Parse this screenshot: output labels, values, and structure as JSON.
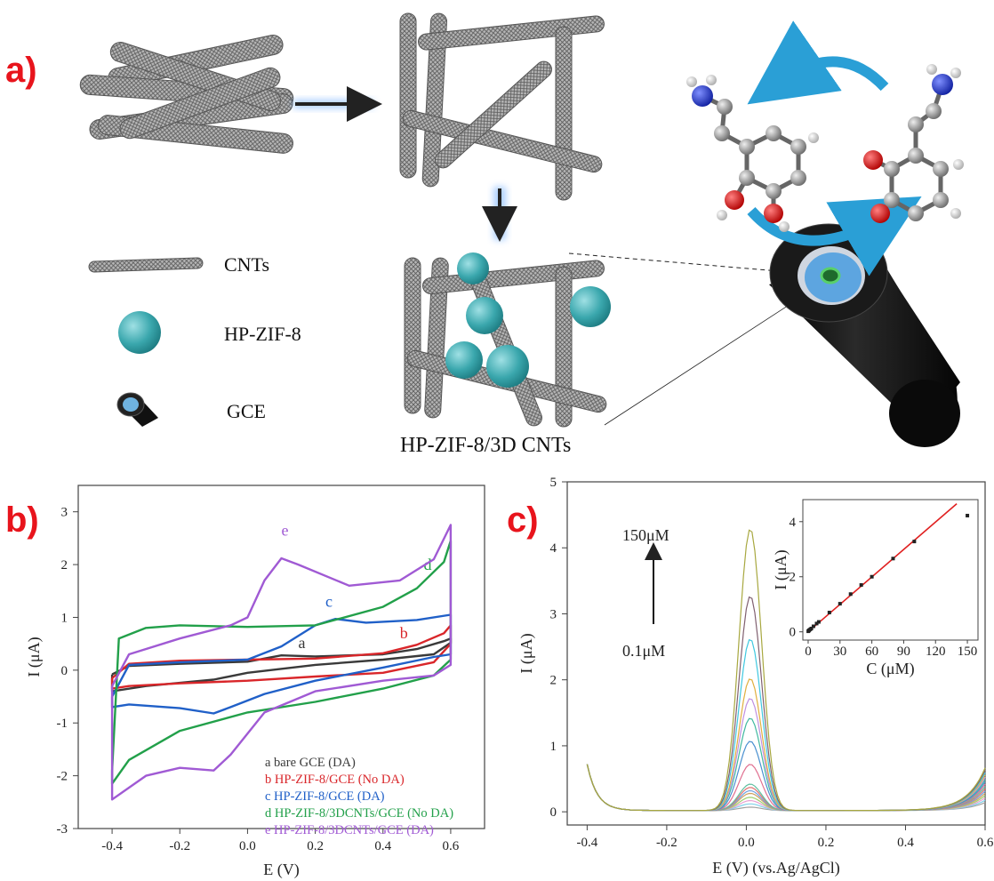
{
  "panel_labels": {
    "a": "a)",
    "b": "b)",
    "c": "c)"
  },
  "schematic": {
    "legend": [
      {
        "label": "CNTs",
        "icon": "cnt-tube-icon"
      },
      {
        "label": "HP-ZIF-8",
        "icon": "zif-sphere-icon"
      },
      {
        "label": "GCE",
        "icon": "electrode-icon"
      }
    ],
    "composite_caption": "HP-ZIF-8/3D CNTs",
    "colors": {
      "cnt": "#8a8a8a",
      "zif": "#3aa7ad",
      "arrow_cycle": "#2a9fd6",
      "electrode": "#111111",
      "electrode_face": "#6fb3e0"
    }
  },
  "chart_data": [
    {
      "type": "line",
      "id": "cv",
      "xlabel": "E (V)",
      "ylabel": "I (μA)",
      "xlim": [
        -0.5,
        0.7
      ],
      "ylim": [
        -3,
        3.5
      ],
      "xticks": [
        -0.4,
        -0.2,
        0.0,
        0.2,
        0.4,
        0.6
      ],
      "xtick_labels": [
        "-0.4",
        "-0.2",
        "0.0",
        "0.2",
        "0.4",
        "0.6"
      ],
      "yticks": [
        -3,
        -2,
        -1,
        0,
        1,
        2,
        3
      ],
      "ytick_labels": [
        "-3",
        "-2",
        "-1",
        "0",
        "1",
        "2",
        "3"
      ],
      "legend_placement": "bottom-right",
      "series": [
        {
          "name": "a bare GCE (DA)",
          "letter": "a",
          "color": "#3a3a3a",
          "label_at": [
            0.15,
            0.42
          ],
          "upper": [
            [
              -0.4,
              -0.08
            ],
            [
              -0.35,
              0.08
            ],
            [
              -0.2,
              0.12
            ],
            [
              0.0,
              0.16
            ],
            [
              0.1,
              0.28
            ],
            [
              0.2,
              0.26
            ],
            [
              0.4,
              0.3
            ],
            [
              0.5,
              0.4
            ],
            [
              0.58,
              0.55
            ],
            [
              0.6,
              0.6
            ]
          ],
          "lower": [
            [
              0.6,
              0.52
            ],
            [
              0.55,
              0.3
            ],
            [
              0.4,
              0.2
            ],
            [
              0.2,
              0.1
            ],
            [
              0.0,
              -0.05
            ],
            [
              -0.1,
              -0.18
            ],
            [
              -0.3,
              -0.3
            ],
            [
              -0.4,
              -0.4
            ]
          ]
        },
        {
          "name": "b HP-ZIF-8/GCE (No DA)",
          "letter": "b",
          "color": "#d9262a",
          "label_at": [
            0.45,
            0.6
          ],
          "upper": [
            [
              -0.4,
              -0.15
            ],
            [
              -0.35,
              0.12
            ],
            [
              -0.2,
              0.18
            ],
            [
              0.0,
              0.2
            ],
            [
              0.2,
              0.22
            ],
            [
              0.4,
              0.32
            ],
            [
              0.5,
              0.48
            ],
            [
              0.58,
              0.7
            ],
            [
              0.6,
              0.85
            ]
          ],
          "lower": [
            [
              0.6,
              0.5
            ],
            [
              0.55,
              0.15
            ],
            [
              0.4,
              -0.05
            ],
            [
              0.2,
              -0.12
            ],
            [
              0.0,
              -0.2
            ],
            [
              -0.2,
              -0.25
            ],
            [
              -0.35,
              -0.3
            ],
            [
              -0.4,
              -0.35
            ]
          ]
        },
        {
          "name": "c HP-ZIF-8/GCE (DA)",
          "letter": "c",
          "color": "#2060c8",
          "label_at": [
            0.23,
            1.2
          ],
          "upper": [
            [
              -0.4,
              -0.5
            ],
            [
              -0.35,
              0.1
            ],
            [
              -0.2,
              0.15
            ],
            [
              0.0,
              0.2
            ],
            [
              0.1,
              0.45
            ],
            [
              0.2,
              0.85
            ],
            [
              0.26,
              0.97
            ],
            [
              0.35,
              0.9
            ],
            [
              0.5,
              0.95
            ],
            [
              0.6,
              1.05
            ]
          ],
          "lower": [
            [
              0.6,
              0.3
            ],
            [
              0.55,
              0.25
            ],
            [
              0.4,
              0.05
            ],
            [
              0.2,
              -0.2
            ],
            [
              0.05,
              -0.45
            ],
            [
              -0.05,
              -0.7
            ],
            [
              -0.1,
              -0.82
            ],
            [
              -0.2,
              -0.72
            ],
            [
              -0.35,
              -0.65
            ],
            [
              -0.4,
              -0.7
            ]
          ]
        },
        {
          "name": "d HP-ZIF-8/3DCNTs/GCE (No DA)",
          "letter": "d",
          "color": "#22a04a",
          "label_at": [
            0.52,
            1.9
          ],
          "upper": [
            [
              -0.4,
              -1.9
            ],
            [
              -0.38,
              0.6
            ],
            [
              -0.3,
              0.8
            ],
            [
              -0.2,
              0.85
            ],
            [
              0.0,
              0.82
            ],
            [
              0.2,
              0.85
            ],
            [
              0.4,
              1.2
            ],
            [
              0.5,
              1.55
            ],
            [
              0.58,
              2.05
            ],
            [
              0.6,
              2.45
            ]
          ],
          "lower": [
            [
              0.6,
              0.2
            ],
            [
              0.55,
              -0.1
            ],
            [
              0.4,
              -0.35
            ],
            [
              0.2,
              -0.6
            ],
            [
              0.0,
              -0.8
            ],
            [
              -0.2,
              -1.15
            ],
            [
              -0.35,
              -1.7
            ],
            [
              -0.4,
              -2.15
            ]
          ]
        },
        {
          "name": "e HP-ZIF-8/3DCNTs/GCE (DA)",
          "letter": "e",
          "color": "#a05ad4",
          "label_at": [
            0.1,
            2.55
          ],
          "upper": [
            [
              -0.4,
              -0.3
            ],
            [
              -0.35,
              0.3
            ],
            [
              -0.2,
              0.6
            ],
            [
              -0.05,
              0.85
            ],
            [
              0.0,
              1.0
            ],
            [
              0.05,
              1.7
            ],
            [
              0.1,
              2.12
            ],
            [
              0.15,
              2.0
            ],
            [
              0.3,
              1.6
            ],
            [
              0.45,
              1.7
            ],
            [
              0.55,
              2.1
            ],
            [
              0.6,
              2.75
            ]
          ],
          "lower": [
            [
              0.6,
              0.1
            ],
            [
              0.55,
              -0.1
            ],
            [
              0.4,
              -0.2
            ],
            [
              0.2,
              -0.4
            ],
            [
              0.05,
              -0.8
            ],
            [
              -0.05,
              -1.6
            ],
            [
              -0.1,
              -1.9
            ],
            [
              -0.2,
              -1.85
            ],
            [
              -0.3,
              -2.0
            ],
            [
              -0.4,
              -2.45
            ]
          ]
        }
      ]
    },
    {
      "type": "line",
      "id": "dpv",
      "xlabel": "E (V) (vs.Ag/AgCl)",
      "ylabel": "I (μA)",
      "xlim": [
        -0.45,
        0.6
      ],
      "ylim": [
        -0.2,
        5
      ],
      "xticks": [
        -0.4,
        -0.2,
        0.0,
        0.2,
        0.4,
        0.6
      ],
      "xtick_labels": [
        "-0.4",
        "-0.2",
        "0.0",
        "0.2",
        "0.4",
        "0.6"
      ],
      "yticks": [
        0,
        1,
        2,
        3,
        4,
        5
      ],
      "ytick_labels": [
        "0",
        "1",
        "2",
        "3",
        "4",
        "5"
      ],
      "annotation_top": "150μM",
      "annotation_bottom": "0.1μM",
      "peak_center": 0.01,
      "peak_heights": [
        0.05,
        0.1,
        0.15,
        0.2,
        0.26,
        0.3,
        0.35,
        0.4,
        0.7,
        1.05,
        1.4,
        1.7,
        2.0,
        2.6,
        3.25,
        4.27
      ],
      "series_colors": [
        "#a0a0a0",
        "#7fd0e8",
        "#e8a0d0",
        "#a0d070",
        "#d0a060",
        "#70a0e0",
        "#e07070",
        "#60c0a0",
        "#e07090",
        "#4a90d0",
        "#40b8a0",
        "#c090e0",
        "#e0b040",
        "#40c8e0",
        "#806070",
        "#a8a840"
      ],
      "inset": {
        "type": "scatter",
        "xlabel": "C (μM)",
        "ylabel": "I (μA)",
        "xlim": [
          -5,
          160
        ],
        "ylim": [
          -0.3,
          4.8
        ],
        "xticks": [
          0,
          30,
          60,
          90,
          120,
          150
        ],
        "xtick_labels": [
          "0",
          "30",
          "60",
          "90",
          "120",
          "150"
        ],
        "yticks": [
          0,
          2,
          4
        ],
        "ytick_labels": [
          "0",
          "2",
          "4"
        ],
        "points": [
          [
            0.1,
            0.02
          ],
          [
            0.5,
            0.04
          ],
          [
            1,
            0.06
          ],
          [
            2,
            0.09
          ],
          [
            3,
            0.12
          ],
          [
            5,
            0.2
          ],
          [
            8,
            0.3
          ],
          [
            10,
            0.36
          ],
          [
            20,
            0.7
          ],
          [
            30,
            1.02
          ],
          [
            40,
            1.37
          ],
          [
            50,
            1.7
          ],
          [
            60,
            2.0
          ],
          [
            80,
            2.66
          ],
          [
            100,
            3.28
          ],
          [
            150,
            4.22
          ]
        ],
        "fit": {
          "x": [
            0,
            140
          ],
          "y": [
            0.0,
            4.65
          ]
        },
        "fit_color": "#e02020"
      }
    }
  ]
}
